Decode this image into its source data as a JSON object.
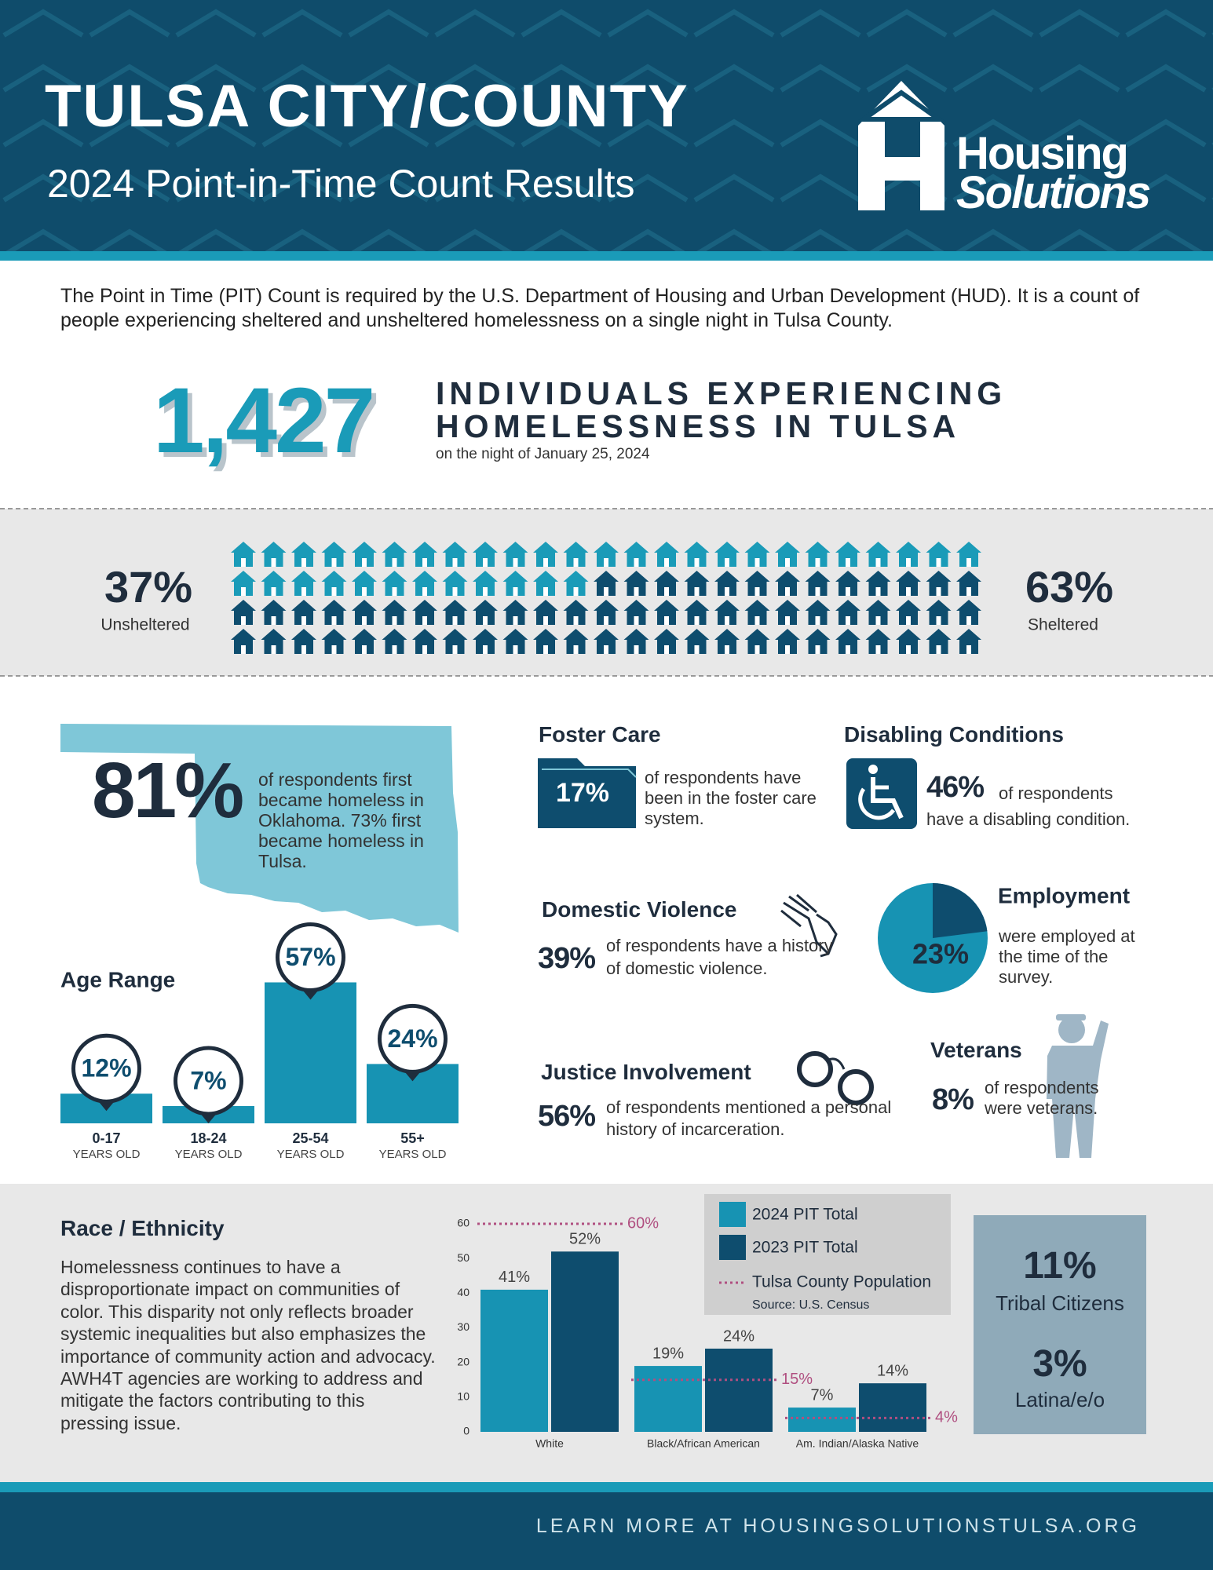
{
  "header": {
    "title": "TULSA CITY/COUNTY",
    "subtitle": "2024 Point-in-Time Count Results",
    "logo_line1": "Housing",
    "logo_line2": "Solutions"
  },
  "intro": "The Point in Time (PIT) Count is required by the U.S. Department of Housing and Urban Development (HUD). It is a count of people experiencing sheltered and unsheltered homelessness on a single night in Tulsa County.",
  "total": {
    "value": "1,427",
    "line1": "INDIVIDUALS EXPERIENCING",
    "line2": "HOMELESSNESS IN TULSA",
    "note": "on the night of January 25, 2024"
  },
  "oklahoma": {
    "value": "81%",
    "text": "of respondents first became homeless in Oklahoma. 73% first became homeless in Tulsa."
  },
  "foster_care": {
    "title": "Foster Care",
    "value": "17%",
    "text": "of respondents have been in the foster care system."
  },
  "disabling": {
    "title": "Disabling Conditions",
    "value": "46%",
    "text1": "of respondents",
    "text2": "have a disabling condition."
  },
  "domestic_violence": {
    "title": "Domestic Violence",
    "value": "39%",
    "text": "of respondents have a history of domestic violence."
  },
  "justice": {
    "title": "Justice Involvement",
    "value": "56%",
    "text": "of respondents mentioned a personal history of incarceration."
  },
  "veterans": {
    "title": "Veterans",
    "value": "8%",
    "text": "of respondents were veterans."
  },
  "race": {
    "title": "Race / Ethnicity",
    "text": "Homelessness continues to have a disproportionate impact on communities of color. This disparity not only reflects broader systemic inequalities but also emphasizes the importance of community action and advocacy. AWH4T agencies are working to address and mitigate the factors contributing to this pressing issue."
  },
  "tribal": {
    "value": "11%",
    "label": "Tribal Citizens"
  },
  "latin": {
    "value": "3%",
    "label": "Latina/e/o"
  },
  "footer": "LEARN MORE AT HOUSINGSOLUTIONSTULSA.ORG",
  "chart_data": [
    {
      "type": "waffle",
      "categories": [
        "Unsheltered",
        "Sheltered"
      ],
      "values": [
        37,
        63
      ],
      "value_labels": [
        "37%",
        "63%"
      ],
      "colors": [
        "#1a9bb8",
        "#0e4d6e"
      ]
    },
    {
      "type": "bar",
      "title": "Age Range",
      "categories": [
        "0-17",
        "18-24",
        "25-54",
        "55+"
      ],
      "category_notes": [
        "YEARS OLD",
        "YEARS OLD",
        "YEARS OLD",
        "YEARS OLD"
      ],
      "values": [
        12,
        7,
        57,
        24
      ],
      "value_labels": [
        "12%",
        "7%",
        "57%",
        "24%"
      ],
      "color": "#1793b3"
    },
    {
      "type": "pie",
      "title": "Employment",
      "note": "were employed at the time of the survey.",
      "values": [
        23
      ],
      "value_labels": [
        "23%"
      ],
      "color": "#0e4d6e",
      "track_color": "#1793b3"
    },
    {
      "type": "bar",
      "categories": [
        "White",
        "Black/African American",
        "Am. Indian/Alaska Native"
      ],
      "series": [
        {
          "name": "2024 PIT Total",
          "color": "#1793b3",
          "values": [
            41,
            19,
            7
          ],
          "value_labels": [
            "41%",
            "19%",
            "7%"
          ]
        },
        {
          "name": "2023 PIT Total",
          "color": "#0e4d6e",
          "values": [
            52,
            24,
            14
          ],
          "value_labels": [
            "52%",
            "24%",
            "14%"
          ]
        }
      ],
      "reference": {
        "name": "Tulsa County Population",
        "color": "#b04f80",
        "values": [
          60,
          15,
          4
        ],
        "value_labels": [
          "60%",
          "15%",
          "4%"
        ]
      },
      "source": "Source: U.S. Census",
      "ylim": [
        0,
        60
      ],
      "yticks": [
        0,
        10,
        20,
        30,
        40,
        50,
        60
      ],
      "grid": false
    }
  ]
}
